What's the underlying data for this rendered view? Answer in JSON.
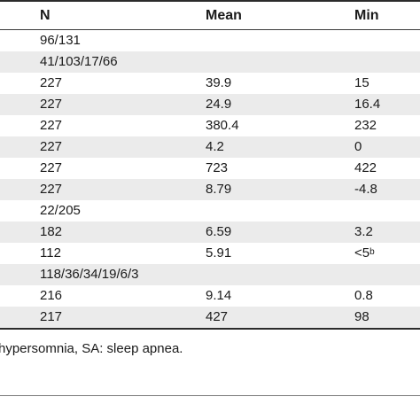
{
  "table": {
    "headers": {
      "n": "N",
      "mean": "Mean",
      "min": "Min"
    },
    "rows": [
      {
        "n": "96/131",
        "mean": "",
        "min": "",
        "min_sup": "",
        "shaded": false
      },
      {
        "n": "41/103/17/66",
        "mean": "",
        "min": "",
        "min_sup": "",
        "shaded": true
      },
      {
        "n": "227",
        "mean": "39.9",
        "min": "15",
        "min_sup": "",
        "shaded": false
      },
      {
        "n": "227",
        "mean": "24.9",
        "min": "16.4",
        "min_sup": "",
        "shaded": true
      },
      {
        "n": "227",
        "mean": "380.4",
        "min": "232",
        "min_sup": "",
        "shaded": false
      },
      {
        "n": "227",
        "mean": "4.2",
        "min": "0",
        "min_sup": "",
        "shaded": true
      },
      {
        "n": "227",
        "mean": "723",
        "min": "422",
        "min_sup": "",
        "shaded": false
      },
      {
        "n": "227",
        "mean": "8.79",
        "min": "-4.8",
        "min_sup": "",
        "shaded": true
      },
      {
        "n": "22/205",
        "mean": "",
        "min": "",
        "min_sup": "",
        "shaded": false
      },
      {
        "n": "182",
        "mean": "6.59",
        "min": "3.2",
        "min_sup": "",
        "shaded": true
      },
      {
        "n": "112",
        "mean": "5.91",
        "min": "<5",
        "min_sup": "b",
        "shaded": false
      },
      {
        "n": "118/36/34/19/6/3",
        "mean": "",
        "min": "",
        "min_sup": "",
        "shaded": true
      },
      {
        "n": "216",
        "mean": "9.14",
        "min": "0.8",
        "min_sup": "",
        "shaded": false
      },
      {
        "n": "217",
        "mean": "427",
        "min": "98",
        "min_sup": "",
        "shaded": true
      }
    ]
  },
  "footnote": "hypersomnia, SA: sleep apnea.",
  "colors": {
    "shade": "#ebebeb",
    "rule": "#2b2b2b",
    "text": "#1a1a1a"
  }
}
